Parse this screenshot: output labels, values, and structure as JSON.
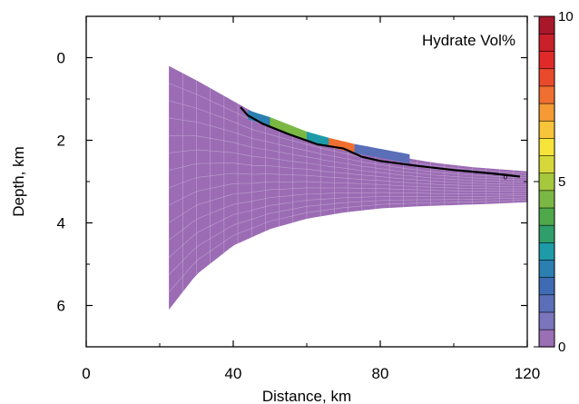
{
  "chart_data": {
    "type": "heatmap",
    "title": "Hydrate Vol%",
    "xlabel": "Distance, km",
    "ylabel": "Depth, km",
    "xlim": [
      0,
      120
    ],
    "ylim": [
      7,
      -1
    ],
    "xticks": [
      0,
      40,
      80,
      120
    ],
    "yticks": [
      0,
      2,
      4,
      6
    ],
    "grid": false,
    "colorbar": {
      "min": 0,
      "max": 10,
      "ticks": [
        0,
        5,
        10
      ],
      "colors": [
        "#9a6fb3",
        "#7b75bd",
        "#5a6fb8",
        "#3f6bb3",
        "#2c7fb0",
        "#1f9aa8",
        "#2f9e6a",
        "#4fa84a",
        "#7ab843",
        "#a6c83c",
        "#d6d83a",
        "#f7e43a",
        "#f8c43a",
        "#f59a35",
        "#ef6f30",
        "#e94a2c",
        "#e02a2a",
        "#c9202a",
        "#a8182a"
      ]
    },
    "mesh": {
      "color": "#9b6cb4",
      "top": {
        "x": [
          22.5,
          30,
          40,
          45,
          55,
          65,
          75,
          85,
          95,
          105,
          115,
          120
        ],
        "y": [
          0.2,
          0.55,
          1.05,
          1.3,
          1.65,
          1.95,
          2.2,
          2.4,
          2.55,
          2.65,
          2.72,
          2.75
        ]
      },
      "bottom": {
        "x": [
          22.5,
          30,
          40,
          50,
          60,
          70,
          80,
          90,
          100,
          110,
          120
        ],
        "y": [
          6.1,
          5.25,
          4.55,
          4.15,
          3.9,
          3.75,
          3.65,
          3.6,
          3.57,
          3.54,
          3.5
        ]
      }
    },
    "hydrate_patches": [
      {
        "x": [
          44,
          50
        ],
        "y": [
          1.38,
          1.55
        ],
        "value": 2.5
      },
      {
        "x": [
          50,
          60
        ],
        "y": [
          1.55,
          1.9
        ],
        "value": 4.5
      },
      {
        "x": [
          60,
          66
        ],
        "y": [
          1.9,
          2.05
        ],
        "value": 3.0
      },
      {
        "x": [
          66,
          73
        ],
        "y": [
          2.05,
          2.2
        ],
        "value": 7.5
      },
      {
        "x": [
          73,
          88
        ],
        "y": [
          2.2,
          2.45
        ],
        "value": 1.5
      }
    ],
    "contour": {
      "label": "0",
      "x": [
        42,
        44,
        48,
        55,
        63,
        70,
        75,
        80,
        90,
        100,
        110,
        118
      ],
      "y": [
        1.2,
        1.4,
        1.6,
        1.85,
        2.1,
        2.2,
        2.4,
        2.5,
        2.62,
        2.72,
        2.8,
        2.88
      ]
    }
  }
}
